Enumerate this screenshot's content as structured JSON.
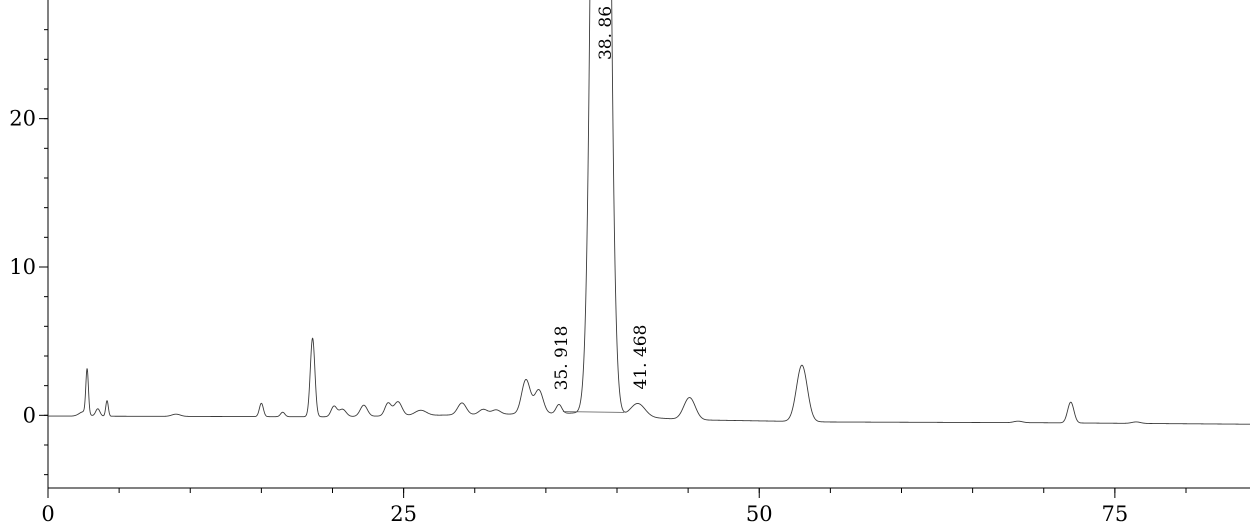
{
  "chart_data": {
    "type": "line",
    "title": "",
    "xlabel": "",
    "ylabel": "",
    "xlim": [
      0,
      84.5
    ],
    "ylim": [
      -4.9,
      28
    ],
    "x_major_ticks": [
      0,
      25,
      50,
      75
    ],
    "x_minor_step": 5,
    "y_major_ticks": [
      0,
      10,
      20
    ],
    "y_minor_step": 2,
    "grid": false,
    "legend": "none",
    "line_color": "#3a3a3a",
    "peaks": [
      {
        "x": 2.5,
        "height": 0.3,
        "width": 0.3
      },
      {
        "x": 2.75,
        "height": 3.0,
        "width": 0.09
      },
      {
        "x": 3.5,
        "height": 0.5,
        "width": 0.15
      },
      {
        "x": 4.15,
        "height": 1.05,
        "width": 0.09
      },
      {
        "x": 9.0,
        "height": 0.15,
        "width": 0.3
      },
      {
        "x": 15.0,
        "height": 0.9,
        "width": 0.14
      },
      {
        "x": 16.5,
        "height": 0.3,
        "width": 0.15
      },
      {
        "x": 18.6,
        "height": 5.3,
        "width": 0.16
      },
      {
        "x": 20.1,
        "height": 0.7,
        "width": 0.2
      },
      {
        "x": 20.7,
        "height": 0.5,
        "width": 0.25
      },
      {
        "x": 22.2,
        "height": 0.75,
        "width": 0.25
      },
      {
        "x": 23.9,
        "height": 0.85,
        "width": 0.22
      },
      {
        "x": 24.6,
        "height": 0.95,
        "width": 0.28
      },
      {
        "x": 26.2,
        "height": 0.35,
        "width": 0.4
      },
      {
        "x": 29.1,
        "height": 0.8,
        "width": 0.3
      },
      {
        "x": 30.6,
        "height": 0.35,
        "width": 0.3
      },
      {
        "x": 31.5,
        "height": 0.3,
        "width": 0.3
      },
      {
        "x": 33.6,
        "height": 2.3,
        "width": 0.3
      },
      {
        "x": 34.5,
        "height": 1.6,
        "width": 0.3
      },
      {
        "x": 35.918,
        "height": 0.6,
        "width": 0.2
      },
      {
        "x": 38.86,
        "height": 120,
        "width": 0.45
      },
      {
        "x": 41.468,
        "height": 0.9,
        "width": 0.5
      },
      {
        "x": 45.1,
        "height": 1.5,
        "width": 0.4
      },
      {
        "x": 53.0,
        "height": 3.8,
        "width": 0.38
      },
      {
        "x": 68.2,
        "height": 0.1,
        "width": 0.3
      },
      {
        "x": 71.9,
        "height": 1.4,
        "width": 0.22
      },
      {
        "x": 76.5,
        "height": 0.1,
        "width": 0.3
      }
    ],
    "baseline": [
      [
        0,
        -0.05
      ],
      [
        20,
        -0.1
      ],
      [
        37,
        0.15
      ],
      [
        45,
        -0.3
      ],
      [
        55,
        -0.45
      ],
      [
        70,
        -0.5
      ],
      [
        84.5,
        -0.6
      ]
    ],
    "integration_baseline": [
      [
        36.2,
        0.25
      ],
      [
        40.5,
        0.2
      ]
    ],
    "peak_labels": [
      {
        "x": 35.918,
        "text": "35. 918"
      },
      {
        "x": 38.86,
        "text": "38. 86"
      },
      {
        "x": 41.468,
        "text": "41. 468"
      }
    ]
  }
}
